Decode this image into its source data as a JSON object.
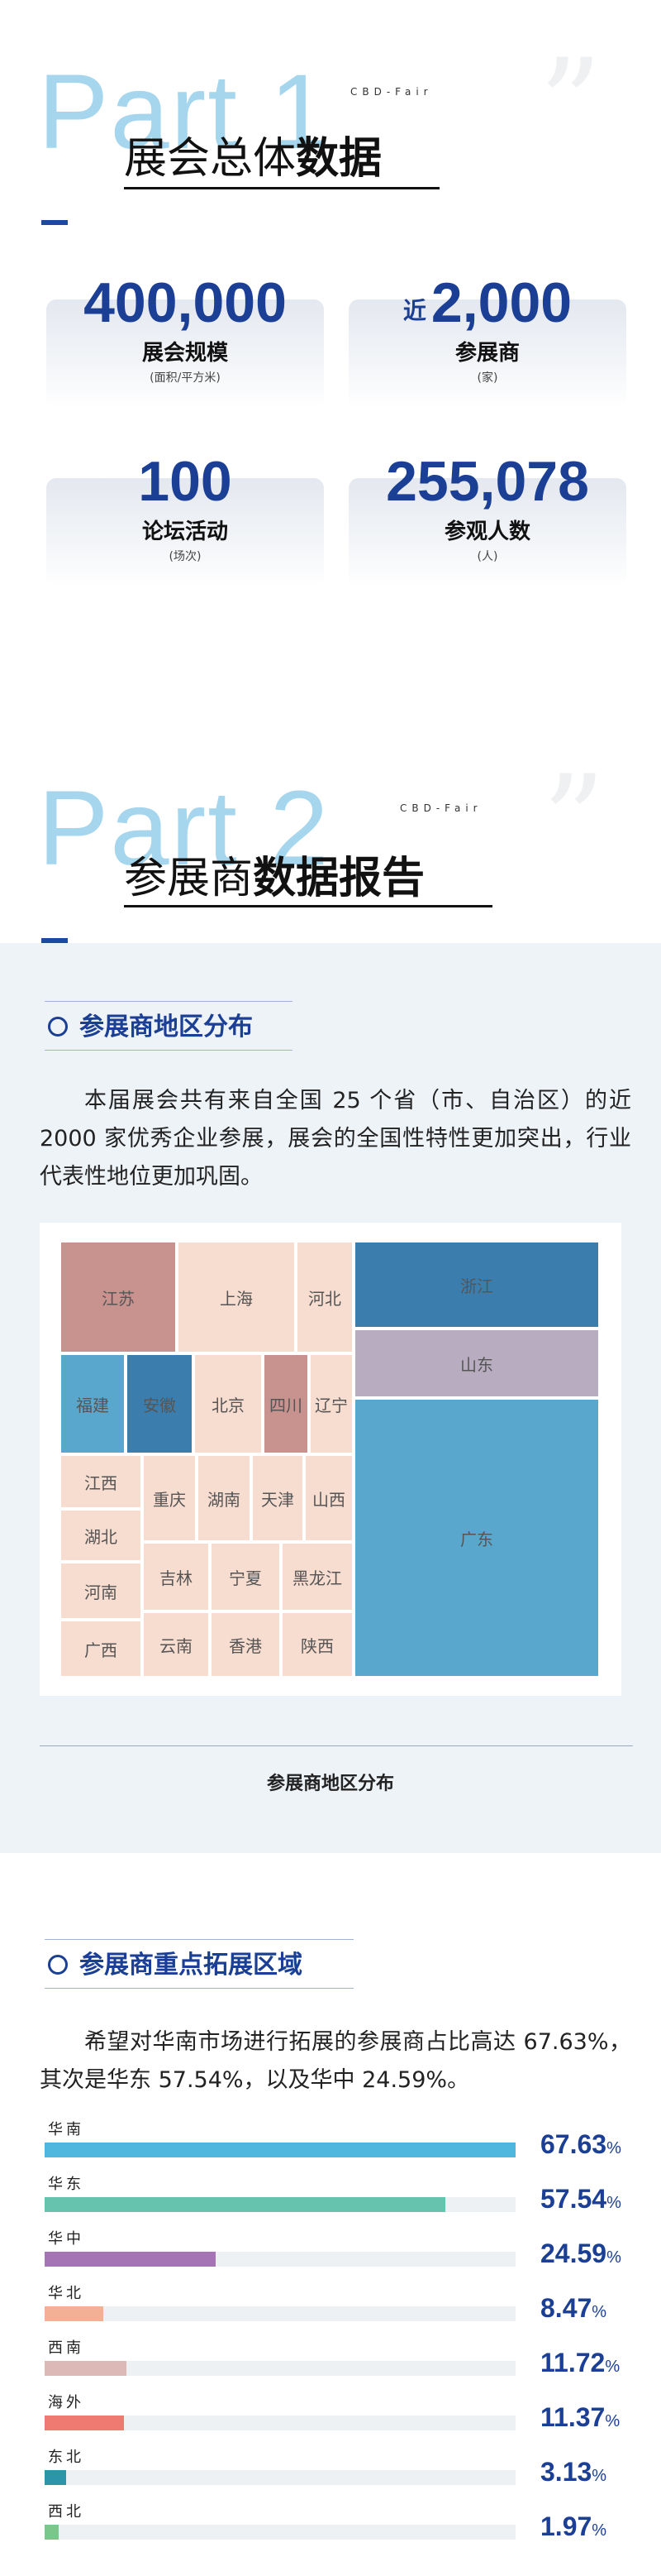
{
  "part1": {
    "bg_text": "Part 1",
    "tag": "CBD-Fair",
    "quote": "”",
    "title_light": "展会总体",
    "title_bold": "数据"
  },
  "stats": [
    {
      "prefix": "",
      "number": "400,000",
      "label": "展会规模",
      "unit": "(面积/平方米)"
    },
    {
      "prefix": "近",
      "number": "2,000",
      "label": "参展商",
      "unit": "(家)"
    },
    {
      "prefix": "",
      "number": "100",
      "label": "论坛活动",
      "unit": "(场次)"
    },
    {
      "prefix": "",
      "number": "255,078",
      "label": "参观人数",
      "unit": "(人)"
    }
  ],
  "part2": {
    "bg_text": "Part 2",
    "tag": "CBD-Fair",
    "quote": "”",
    "title_light": "参展商",
    "title_bold": "数据报告"
  },
  "region_section": {
    "heading": "参展商地区分布",
    "paragraph": "本届展会共有来自全国 25 个省（市、自治区）的近 2000 家优秀企业参展，展会的全国性特性更加突出，行业代表性地位更加巩固。",
    "caption": "参展商地区分布"
  },
  "expansion_section": {
    "heading": "参展商重点拓展区域",
    "paragraph": "希望对华南市场进行拓展的参展商占比高达 67.63%，其次是华东 57.54%，以及华中 24.59%。"
  },
  "colors": {
    "accent": "#1b3f95",
    "treemap_dark": "#3b7eae",
    "treemap_mid": "#5aa7cd",
    "treemap_rose": "#c8928f",
    "treemap_lilac": "#b8adc0",
    "treemap_light": "#f7dcd0"
  },
  "chart_data": [
    {
      "type": "treemap",
      "title": "参展商地区分布",
      "items": [
        {
          "name": "广东"
        },
        {
          "name": "浙江"
        },
        {
          "name": "山东"
        },
        {
          "name": "江苏"
        },
        {
          "name": "上海"
        },
        {
          "name": "河北"
        },
        {
          "name": "福建"
        },
        {
          "name": "安徽"
        },
        {
          "name": "北京"
        },
        {
          "name": "四川"
        },
        {
          "name": "辽宁"
        },
        {
          "name": "江西"
        },
        {
          "name": "湖北"
        },
        {
          "name": "河南"
        },
        {
          "name": "广西"
        },
        {
          "name": "重庆"
        },
        {
          "name": "湖南"
        },
        {
          "name": "天津"
        },
        {
          "name": "山西"
        },
        {
          "name": "吉林"
        },
        {
          "name": "宁夏"
        },
        {
          "name": "黑龙江"
        },
        {
          "name": "云南"
        },
        {
          "name": "香港"
        },
        {
          "name": "陕西"
        }
      ]
    },
    {
      "type": "bar",
      "orientation": "horizontal",
      "unit": "%",
      "xlim": [
        0,
        67.63
      ],
      "categories": [
        "华南",
        "华东",
        "华中",
        "华北",
        "西南",
        "海外",
        "东北",
        "西北"
      ],
      "values": [
        67.63,
        57.54,
        24.59,
        8.47,
        11.72,
        11.37,
        3.13,
        1.97
      ],
      "labels": [
        "67.63",
        "57.54",
        "24.59",
        "8.47",
        "11.72",
        "11.37",
        "3.13",
        "1.97"
      ],
      "colors": [
        "#4fb6dd",
        "#66c3ad",
        "#a474b5",
        "#f4b095",
        "#dcb9b6",
        "#ee7a72",
        "#2c95aa",
        "#7bc68a"
      ]
    }
  ]
}
